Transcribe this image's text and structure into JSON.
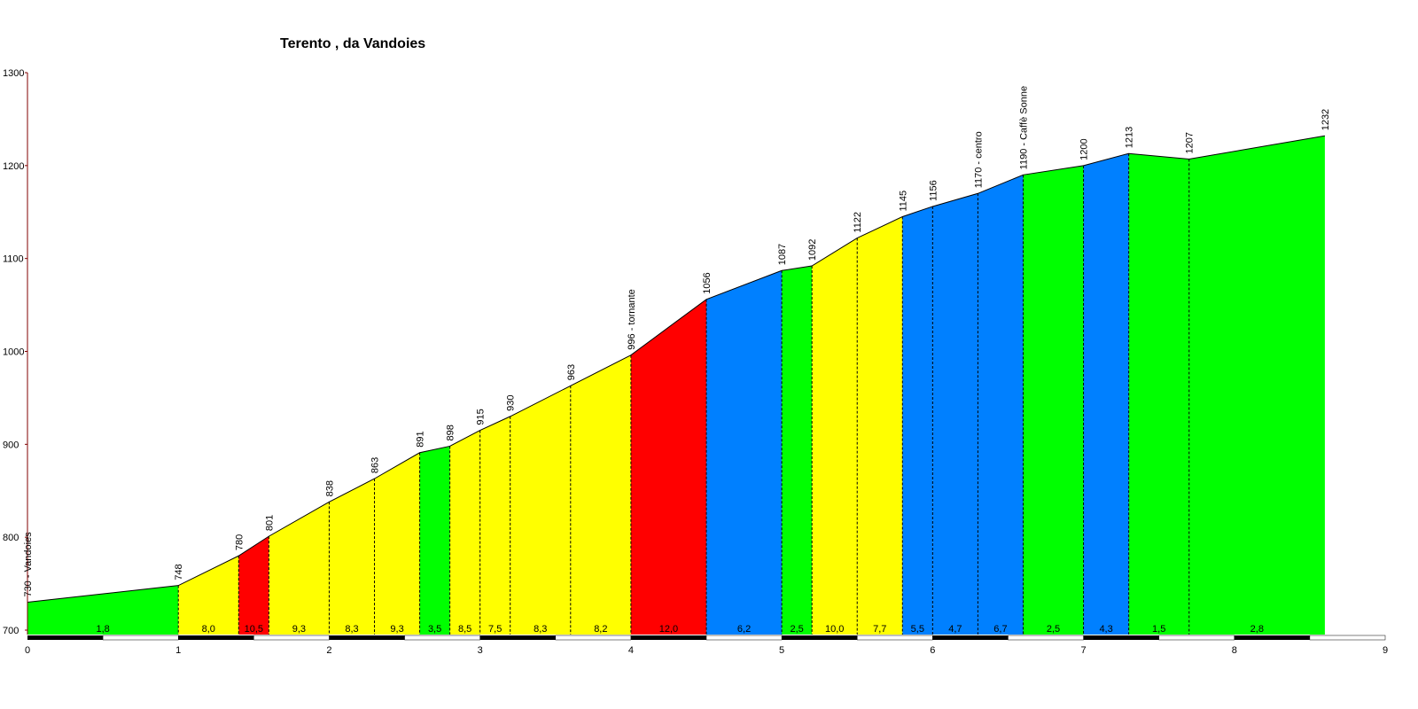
{
  "chart_data": {
    "type": "area",
    "title": "Terento , da Vandoies",
    "xlabel": "",
    "ylabel": "",
    "xlim": [
      0,
      9
    ],
    "ylim": [
      700,
      1300
    ],
    "x_ticks": [
      "0",
      "1",
      "2",
      "3",
      "4",
      "5",
      "6",
      "7",
      "8",
      "9"
    ],
    "y_ticks": [
      "700",
      "800",
      "900",
      "1000",
      "1100",
      "1200",
      "1300"
    ],
    "colors": {
      "green": "#00FF00",
      "yellow": "#FFFF00",
      "red": "#FF0000",
      "blue": "#0080FF"
    },
    "points": [
      {
        "x": 0.0,
        "y": 730,
        "label": "730 - Vandoies"
      },
      {
        "x": 1.0,
        "y": 748,
        "label": "748"
      },
      {
        "x": 1.4,
        "y": 780,
        "label": "780"
      },
      {
        "x": 1.6,
        "y": 801,
        "label": "801"
      },
      {
        "x": 2.0,
        "y": 838,
        "label": "838"
      },
      {
        "x": 2.3,
        "y": 863,
        "label": "863"
      },
      {
        "x": 2.6,
        "y": 891,
        "label": "891"
      },
      {
        "x": 2.8,
        "y": 898,
        "label": "898"
      },
      {
        "x": 3.0,
        "y": 915,
        "label": "915"
      },
      {
        "x": 3.2,
        "y": 930,
        "label": "930"
      },
      {
        "x": 3.6,
        "y": 963,
        "label": "963"
      },
      {
        "x": 4.0,
        "y": 996,
        "label": "996 - tornante"
      },
      {
        "x": 4.5,
        "y": 1056,
        "label": "1056"
      },
      {
        "x": 5.0,
        "y": 1087,
        "label": "1087"
      },
      {
        "x": 5.2,
        "y": 1092,
        "label": "1092"
      },
      {
        "x": 5.5,
        "y": 1122,
        "label": "1122"
      },
      {
        "x": 5.8,
        "y": 1145,
        "label": "1145"
      },
      {
        "x": 6.0,
        "y": 1156,
        "label": "1156"
      },
      {
        "x": 6.3,
        "y": 1170,
        "label": "1170 - centro"
      },
      {
        "x": 6.6,
        "y": 1190,
        "label": "1190 - Caffè Sonne"
      },
      {
        "x": 7.0,
        "y": 1200,
        "label": "1200"
      },
      {
        "x": 7.3,
        "y": 1213,
        "label": "1213"
      },
      {
        "x": 7.7,
        "y": 1207,
        "label": "1207"
      },
      {
        "x": 8.6,
        "y": 1232,
        "label": "1232"
      }
    ],
    "segments": [
      {
        "grade": "1,8",
        "color": "green"
      },
      {
        "grade": "8,0",
        "color": "yellow"
      },
      {
        "grade": "10,5",
        "color": "red"
      },
      {
        "grade": "9,3",
        "color": "yellow"
      },
      {
        "grade": "8,3",
        "color": "yellow"
      },
      {
        "grade": "9,3",
        "color": "yellow"
      },
      {
        "grade": "3,5",
        "color": "green"
      },
      {
        "grade": "8,5",
        "color": "yellow"
      },
      {
        "grade": "7,5",
        "color": "yellow"
      },
      {
        "grade": "8,3",
        "color": "yellow"
      },
      {
        "grade": "8,2",
        "color": "yellow"
      },
      {
        "grade": "12,0",
        "color": "red"
      },
      {
        "grade": "6,2",
        "color": "blue"
      },
      {
        "grade": "2,5",
        "color": "green"
      },
      {
        "grade": "10,0",
        "color": "yellow"
      },
      {
        "grade": "7,7",
        "color": "yellow"
      },
      {
        "grade": "5,5",
        "color": "blue"
      },
      {
        "grade": "4,7",
        "color": "blue"
      },
      {
        "grade": "6,7",
        "color": "blue"
      },
      {
        "grade": "2,5",
        "color": "green"
      },
      {
        "grade": "4,3",
        "color": "blue"
      },
      {
        "grade": "1,5",
        "color": "green"
      },
      {
        "grade": "2,8",
        "color": "green"
      }
    ]
  }
}
